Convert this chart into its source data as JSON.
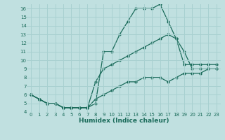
{
  "bg_color": "#c0e0e0",
  "grid_color": "#a8d0d0",
  "line_color": "#1a6b5a",
  "xlabel": "Humidex (Indice chaleur)",
  "xlim": [
    -0.5,
    23.5
  ],
  "ylim": [
    4,
    16.5
  ],
  "xticks": [
    0,
    1,
    2,
    3,
    4,
    5,
    6,
    7,
    8,
    9,
    10,
    11,
    12,
    13,
    14,
    15,
    16,
    17,
    18,
    19,
    20,
    21,
    22,
    23
  ],
  "yticks": [
    4,
    5,
    6,
    7,
    8,
    9,
    10,
    11,
    12,
    13,
    14,
    15,
    16
  ],
  "curve1_x": [
    0,
    1,
    2,
    3,
    4,
    5,
    6,
    7,
    8,
    9,
    10,
    11,
    12,
    13,
    14,
    15,
    16,
    17,
    18,
    19,
    20,
    21,
    22,
    23
  ],
  "curve1_y": [
    6.0,
    5.5,
    5.0,
    5.0,
    4.5,
    4.5,
    4.5,
    4.5,
    5.0,
    11.0,
    11.0,
    13.0,
    14.5,
    16.0,
    16.0,
    16.0,
    16.5,
    14.5,
    12.5,
    9.5,
    9.5,
    9.5,
    9.5,
    9.5
  ],
  "curve2_x": [
    0,
    1,
    2,
    3,
    4,
    5,
    6,
    7,
    8,
    9,
    10,
    11,
    12,
    13,
    14,
    15,
    16,
    17,
    18,
    19,
    20,
    21,
    22,
    23
  ],
  "curve2_y": [
    6.0,
    5.5,
    5.0,
    5.0,
    4.5,
    4.5,
    4.5,
    4.5,
    7.5,
    9.0,
    9.5,
    10.0,
    10.5,
    11.0,
    11.5,
    12.0,
    12.5,
    13.0,
    12.5,
    11.0,
    9.0,
    9.0,
    9.0,
    9.0
  ],
  "curve3_x": [
    0,
    1,
    2,
    3,
    4,
    5,
    6,
    7,
    8,
    9,
    10,
    11,
    12,
    13,
    14,
    15,
    16,
    17,
    18,
    19,
    20,
    21,
    22,
    23
  ],
  "curve3_y": [
    6.0,
    5.5,
    5.0,
    5.0,
    4.5,
    4.5,
    4.5,
    4.5,
    5.5,
    6.0,
    6.5,
    7.0,
    7.5,
    7.5,
    8.0,
    8.0,
    8.0,
    7.5,
    8.0,
    8.5,
    8.5,
    8.5,
    9.0,
    9.0
  ]
}
